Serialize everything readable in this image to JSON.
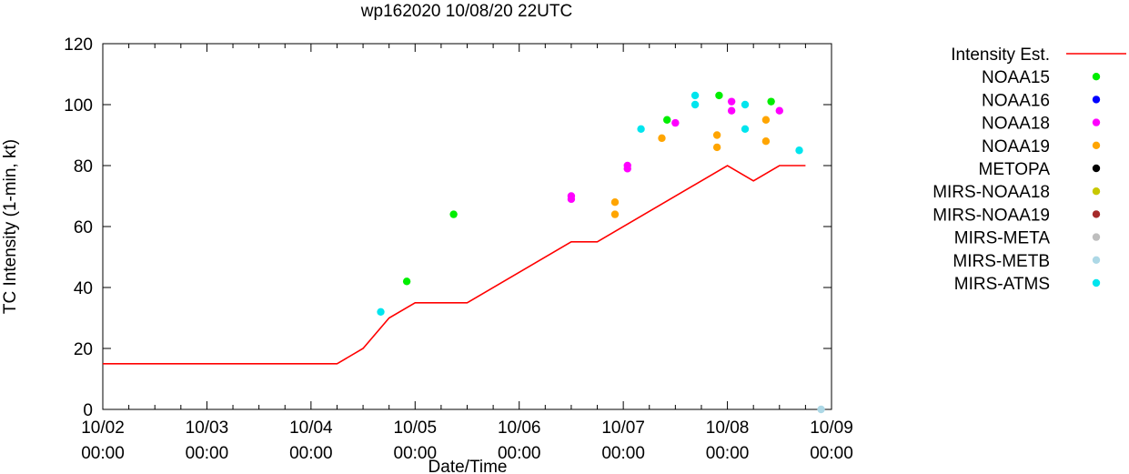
{
  "chart_data": {
    "type": "line",
    "title": "wp162020 10/08/20 22UTC",
    "xlabel": "Date/Time",
    "ylabel": "TC Intensity (1-min, kt)",
    "ylim": [
      0,
      120
    ],
    "yticks": [
      0,
      20,
      40,
      60,
      80,
      100,
      120
    ],
    "xlim_days": [
      0,
      7
    ],
    "xticks": [
      {
        "day": 0,
        "date": "10/02",
        "time": "00:00"
      },
      {
        "day": 1,
        "date": "10/03",
        "time": "00:00"
      },
      {
        "day": 2,
        "date": "10/04",
        "time": "00:00"
      },
      {
        "day": 3,
        "date": "10/05",
        "time": "00:00"
      },
      {
        "day": 4,
        "date": "10/06",
        "time": "00:00"
      },
      {
        "day": 5,
        "date": "10/07",
        "time": "00:00"
      },
      {
        "day": 6,
        "date": "10/08",
        "time": "00:00"
      },
      {
        "day": 7,
        "date": "10/09",
        "time": "00:00"
      }
    ],
    "legend_position": "right",
    "line_series": {
      "name": "Intensity Est.",
      "color": "#ff0000",
      "x_days": [
        0,
        2.25,
        2.5,
        2.75,
        3.0,
        3.25,
        3.5,
        4.5,
        4.75,
        6.0,
        6.25,
        6.5,
        6.75
      ],
      "values": [
        15,
        15,
        20,
        30,
        35,
        35,
        35,
        55,
        55,
        80,
        75,
        80,
        80
      ]
    },
    "scatter_series": [
      {
        "name": "NOAA15",
        "color": "#00ee00",
        "points": [
          [
            2.92,
            42
          ],
          [
            3.37,
            64
          ],
          [
            5.42,
            95
          ],
          [
            5.92,
            103
          ],
          [
            6.42,
            101
          ]
        ]
      },
      {
        "name": "NOAA16",
        "color": "#0000ff",
        "points": []
      },
      {
        "name": "NOAA18",
        "color": "#ff00ff",
        "points": [
          [
            4.5,
            70
          ],
          [
            4.5,
            69
          ],
          [
            5.04,
            80
          ],
          [
            5.04,
            79
          ],
          [
            5.5,
            94
          ],
          [
            6.04,
            101
          ],
          [
            6.04,
            98
          ],
          [
            6.5,
            98
          ]
        ]
      },
      {
        "name": "NOAA19",
        "color": "#ffa500",
        "points": [
          [
            4.92,
            68
          ],
          [
            4.92,
            64
          ],
          [
            5.37,
            89
          ],
          [
            5.9,
            90
          ],
          [
            5.9,
            86
          ],
          [
            6.37,
            95
          ],
          [
            6.37,
            88
          ]
        ]
      },
      {
        "name": "METOPA",
        "color": "#000000",
        "points": []
      },
      {
        "name": "MIRS-NOAA18",
        "color": "#c8c800",
        "points": []
      },
      {
        "name": "MIRS-NOAA19",
        "color": "#a52a2a",
        "points": []
      },
      {
        "name": "MIRS-META",
        "color": "#bebebe",
        "points": []
      },
      {
        "name": "MIRS-METB",
        "color": "#add8e6",
        "points": [
          [
            6.9,
            0
          ]
        ]
      },
      {
        "name": "MIRS-ATMS",
        "color": "#00e5ee",
        "points": [
          [
            2.67,
            32
          ],
          [
            5.17,
            92
          ],
          [
            5.69,
            103
          ],
          [
            5.69,
            100
          ],
          [
            6.17,
            100
          ],
          [
            6.17,
            92
          ],
          [
            6.69,
            85
          ]
        ]
      }
    ]
  }
}
